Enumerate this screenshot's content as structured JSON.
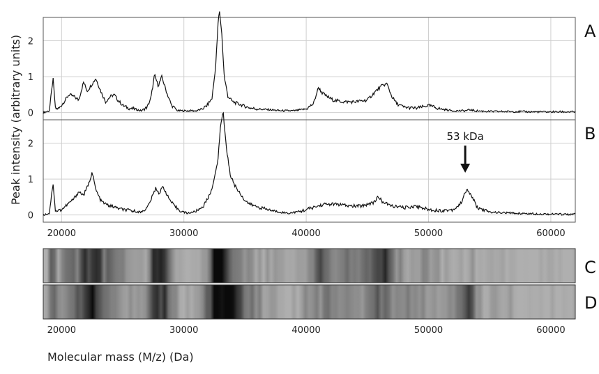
{
  "chart_data": [
    {
      "panel": "A",
      "type": "line",
      "xlim": [
        18500,
        62000
      ],
      "ylim": [
        -0.2,
        2.65
      ],
      "yticks": [
        0,
        1,
        2
      ],
      "grid": true,
      "series": [
        {
          "x": [
            18500,
            19000,
            19300,
            19500,
            19800,
            20200,
            20600,
            21000,
            21400,
            21800,
            22100,
            22500,
            22800,
            23200,
            23600,
            24000,
            24300,
            24600,
            25000,
            25500,
            26000,
            26500,
            27000,
            27300,
            27600,
            27900,
            28200,
            28600,
            29000,
            29500,
            30000,
            30500,
            31000,
            31500,
            31900,
            32300,
            32600,
            32800,
            32900,
            33100,
            33300,
            33600,
            34000,
            34400,
            34800,
            35200,
            35600,
            36000,
            37000,
            38000,
            39000,
            40000,
            40600,
            41000,
            41300,
            41700,
            42200,
            43000,
            44000,
            45000,
            45700,
            46200,
            46600,
            47000,
            47400,
            48000,
            49000,
            50000,
            51000,
            52000,
            53000,
            53400,
            53800,
            55000,
            57000,
            59000,
            61000,
            62000
          ],
          "y": [
            0,
            0.05,
            0.95,
            0.1,
            0.12,
            0.3,
            0.5,
            0.45,
            0.35,
            0.85,
            0.6,
            0.8,
            0.95,
            0.6,
            0.3,
            0.45,
            0.5,
            0.35,
            0.2,
            0.12,
            0.1,
            0.05,
            0.15,
            0.4,
            1.05,
            0.75,
            1.0,
            0.55,
            0.2,
            0.05,
            0.05,
            0.05,
            0.05,
            0.1,
            0.2,
            0.4,
            1.3,
            2.5,
            2.85,
            2.2,
            1.0,
            0.45,
            0.3,
            0.25,
            0.2,
            0.15,
            0.12,
            0.1,
            0.08,
            0.05,
            0.05,
            0.1,
            0.25,
            0.7,
            0.55,
            0.45,
            0.35,
            0.3,
            0.3,
            0.35,
            0.6,
            0.75,
            0.8,
            0.45,
            0.25,
            0.15,
            0.12,
            0.2,
            0.1,
            0.05,
            0.05,
            0.08,
            0.05,
            0.03,
            0.03,
            0.02,
            0.02,
            0.02
          ]
        }
      ]
    },
    {
      "panel": "B",
      "type": "line",
      "xlim": [
        18500,
        62000
      ],
      "ylim": [
        -0.2,
        2.65
      ],
      "yticks": [
        0,
        1,
        2
      ],
      "grid": true,
      "series": [
        {
          "x": [
            18500,
            19000,
            19300,
            19500,
            20000,
            20500,
            21000,
            21400,
            21800,
            22200,
            22500,
            22800,
            23200,
            23600,
            24000,
            24500,
            25000,
            26000,
            26500,
            27000,
            27400,
            27700,
            28000,
            28300,
            28700,
            29200,
            29800,
            30300,
            31000,
            31600,
            32100,
            32500,
            32800,
            33000,
            33200,
            33500,
            33800,
            34200,
            34600,
            35000,
            35400,
            35800,
            36500,
            37500,
            38500,
            39500,
            40500,
            41500,
            42500,
            43500,
            44500,
            45500,
            45900,
            46300,
            47000,
            48000,
            49000,
            50000,
            51000,
            52000,
            52600,
            53100,
            53500,
            54000,
            55000,
            57000,
            59000,
            61000,
            62000
          ],
          "y": [
            0,
            0.05,
            0.9,
            0.1,
            0.15,
            0.3,
            0.45,
            0.65,
            0.55,
            0.85,
            1.2,
            0.7,
            0.4,
            0.3,
            0.25,
            0.2,
            0.15,
            0.1,
            0.08,
            0.2,
            0.5,
            0.75,
            0.6,
            0.8,
            0.5,
            0.25,
            0.1,
            0.05,
            0.1,
            0.25,
            0.55,
            1.0,
            1.6,
            2.5,
            2.9,
            1.8,
            1.1,
            0.8,
            0.6,
            0.4,
            0.3,
            0.25,
            0.18,
            0.1,
            0.05,
            0.1,
            0.2,
            0.3,
            0.3,
            0.25,
            0.25,
            0.35,
            0.5,
            0.35,
            0.25,
            0.2,
            0.25,
            0.15,
            0.12,
            0.15,
            0.3,
            0.7,
            0.55,
            0.2,
            0.08,
            0.05,
            0.03,
            0.02,
            0.02
          ]
        }
      ],
      "annotation": {
        "label": "53 kDa",
        "x": 53000
      }
    },
    {
      "panel": "C",
      "type": "heatmap",
      "xlim": [
        18500,
        62000
      ],
      "source_series_panel": "A"
    },
    {
      "panel": "D",
      "type": "heatmap",
      "xlim": [
        18500,
        62000
      ],
      "source_series_panel": "B"
    }
  ],
  "axes": {
    "ylabel": "Peak intensity (arbitrary units)",
    "xlabel": "Molecular mass (M/z) (Da)",
    "xticks": [
      20000,
      30000,
      40000,
      50000,
      60000
    ]
  },
  "panel_labels": [
    "A",
    "B",
    "C",
    "D"
  ]
}
